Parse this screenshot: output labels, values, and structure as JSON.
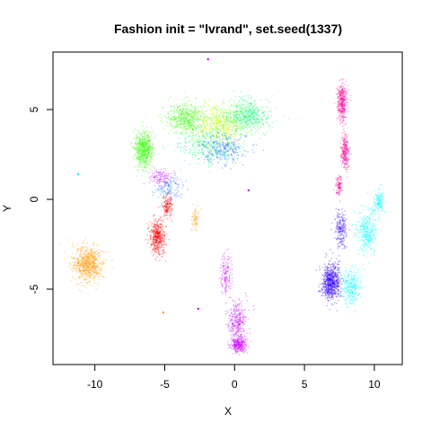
{
  "chart_data": {
    "type": "scatter",
    "title": "Fashion init = \"lvrand\", set.seed(1337)",
    "xlabel": "X",
    "ylabel": "Y",
    "xlim": [
      -13,
      12
    ],
    "ylim": [
      -9.2,
      8.2
    ],
    "x_ticks": [
      -10,
      -5,
      0,
      5,
      10
    ],
    "y_ticks": [
      -5,
      0,
      5
    ],
    "x_tick_labels": [
      "-10",
      "-5",
      "0",
      "5",
      "10"
    ],
    "y_tick_labels": [
      "-5",
      "0",
      "5"
    ],
    "grid": false,
    "legend": "none",
    "series_colors": {
      "c0": "#FF0000",
      "c1": "#FF9900",
      "c2": "#CCFF00",
      "c3": "#33FF00",
      "c4": "#00FF66",
      "c5": "#00FFFF",
      "c6": "#0066FF",
      "c7": "#3300FF",
      "c8": "#CC00FF",
      "c9": "#FF0099"
    },
    "clusters": [
      {
        "color": "c1",
        "cx": -10.5,
        "cy": -3.6,
        "sx": 0.9,
        "sy": 0.8,
        "n": 700
      },
      {
        "color": "c8",
        "cx": 0.2,
        "cy": -6.8,
        "sx": 0.55,
        "sy": 1.0,
        "n": 300
      },
      {
        "color": "c8",
        "cx": 0.3,
        "cy": -8.1,
        "sx": 0.45,
        "sy": 0.35,
        "n": 300
      },
      {
        "color": "c8",
        "cx": -0.6,
        "cy": -4.2,
        "sx": 0.35,
        "sy": 0.9,
        "n": 150
      },
      {
        "color": "c0",
        "cx": -5.5,
        "cy": -2.1,
        "sx": 0.45,
        "sy": 0.8,
        "n": 450
      },
      {
        "color": "c0",
        "cx": -4.8,
        "cy": -0.4,
        "sx": 0.3,
        "sy": 0.6,
        "n": 150
      },
      {
        "color": "c7",
        "cx": 6.9,
        "cy": -4.6,
        "sx": 0.55,
        "sy": 0.8,
        "n": 700
      },
      {
        "color": "c7",
        "cx": 7.6,
        "cy": -1.6,
        "sx": 0.35,
        "sy": 0.8,
        "n": 200
      },
      {
        "color": "c5",
        "cx": 8.3,
        "cy": -4.8,
        "sx": 0.6,
        "sy": 0.8,
        "n": 300
      },
      {
        "color": "c5",
        "cx": 9.5,
        "cy": -1.8,
        "sx": 0.6,
        "sy": 1.0,
        "n": 350
      },
      {
        "color": "c5",
        "cx": 10.3,
        "cy": -0.2,
        "sx": 0.35,
        "sy": 0.5,
        "n": 150
      },
      {
        "color": "c9",
        "cx": 7.7,
        "cy": 5.4,
        "sx": 0.3,
        "sy": 0.8,
        "n": 350
      },
      {
        "color": "c9",
        "cx": 7.9,
        "cy": 2.6,
        "sx": 0.25,
        "sy": 0.8,
        "n": 250
      },
      {
        "color": "c9",
        "cx": 7.5,
        "cy": 0.8,
        "sx": 0.2,
        "sy": 0.5,
        "n": 100
      },
      {
        "color": "c3",
        "cx": -6.5,
        "cy": 2.8,
        "sx": 0.55,
        "sy": 0.8,
        "n": 600
      },
      {
        "color": "c3",
        "cx": -3.5,
        "cy": 4.5,
        "sx": 1.2,
        "sy": 0.7,
        "n": 500
      },
      {
        "color": "c2",
        "cx": -1.0,
        "cy": 4.2,
        "sx": 1.6,
        "sy": 0.9,
        "n": 600
      },
      {
        "color": "c4",
        "cx": 0.8,
        "cy": 4.6,
        "sx": 1.4,
        "sy": 0.8,
        "n": 550
      },
      {
        "color": "c6",
        "cx": -0.8,
        "cy": 2.8,
        "sx": 1.4,
        "sy": 0.7,
        "n": 300
      },
      {
        "color": "c4",
        "cx": -2.2,
        "cy": 3.0,
        "sx": 1.8,
        "sy": 1.0,
        "n": 300
      },
      {
        "color": "c8",
        "cx": -5.3,
        "cy": 1.2,
        "sx": 0.8,
        "sy": 0.4,
        "n": 120
      },
      {
        "color": "c6",
        "cx": -4.6,
        "cy": 0.6,
        "sx": 0.9,
        "sy": 0.5,
        "n": 120
      },
      {
        "color": "c1",
        "cx": -2.8,
        "cy": -1.1,
        "sx": 0.25,
        "sy": 0.5,
        "n": 70
      }
    ],
    "outliers": [
      {
        "color": "c8",
        "x": -1.9,
        "y": 7.8
      },
      {
        "color": "c5",
        "x": -11.2,
        "y": 1.4
      },
      {
        "color": "c8",
        "x": -2.6,
        "y": -6.1
      },
      {
        "color": "c1",
        "x": -5.1,
        "y": -6.3
      },
      {
        "color": "c8",
        "x": 1.0,
        "y": 0.5
      }
    ]
  }
}
